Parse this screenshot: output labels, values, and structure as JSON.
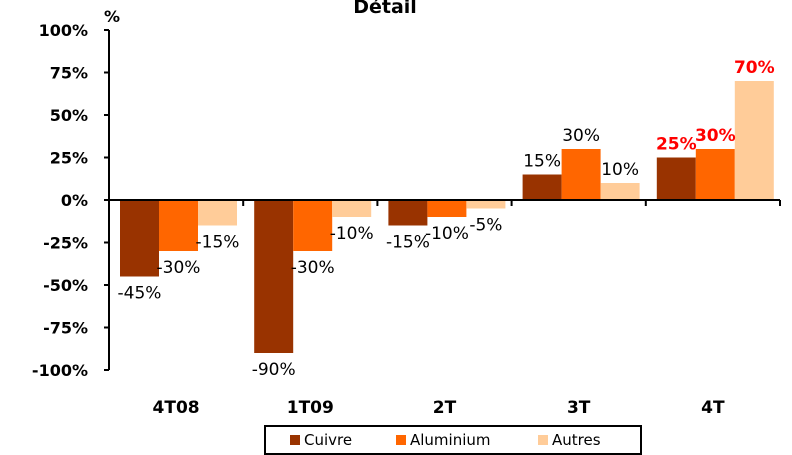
{
  "chart_data": {
    "type": "bar",
    "title": "Détail",
    "ylabel_unit": "%",
    "categories": [
      "4T08",
      "1T09",
      "2T",
      "3T",
      "4T"
    ],
    "ylim": [
      -100,
      100
    ],
    "yticks": [
      "100%",
      "75%",
      "50%",
      "25%",
      "0%",
      "-25%",
      "-50%",
      "-75%",
      "-100%"
    ],
    "series": [
      {
        "name": "Cuivre",
        "color": "#993300",
        "values": [
          -45,
          -90,
          -15,
          15,
          25
        ],
        "labels": [
          "-45%",
          "-90%",
          "-15%",
          "15%",
          "25%"
        ],
        "label_colors": [
          "#000000",
          "#000000",
          "#000000",
          "#000000",
          "#ff0000"
        ]
      },
      {
        "name": "Aluminium",
        "color": "#ff6600",
        "values": [
          -30,
          -30,
          -10,
          30,
          30
        ],
        "labels": [
          "-30%",
          "-30%",
          "-10%",
          "30%",
          "30%"
        ],
        "label_colors": [
          "#000000",
          "#000000",
          "#000000",
          "#000000",
          "#ff0000"
        ]
      },
      {
        "name": "Autres",
        "color": "#ffcc99",
        "values": [
          -15,
          -10,
          -5,
          10,
          70
        ],
        "labels": [
          "-15%",
          "-10%",
          "-5%",
          "10%",
          "70%"
        ],
        "label_colors": [
          "#000000",
          "#000000",
          "#000000",
          "#000000",
          "#ff0000"
        ]
      }
    ],
    "legend_position": "bottom",
    "grid": false
  }
}
